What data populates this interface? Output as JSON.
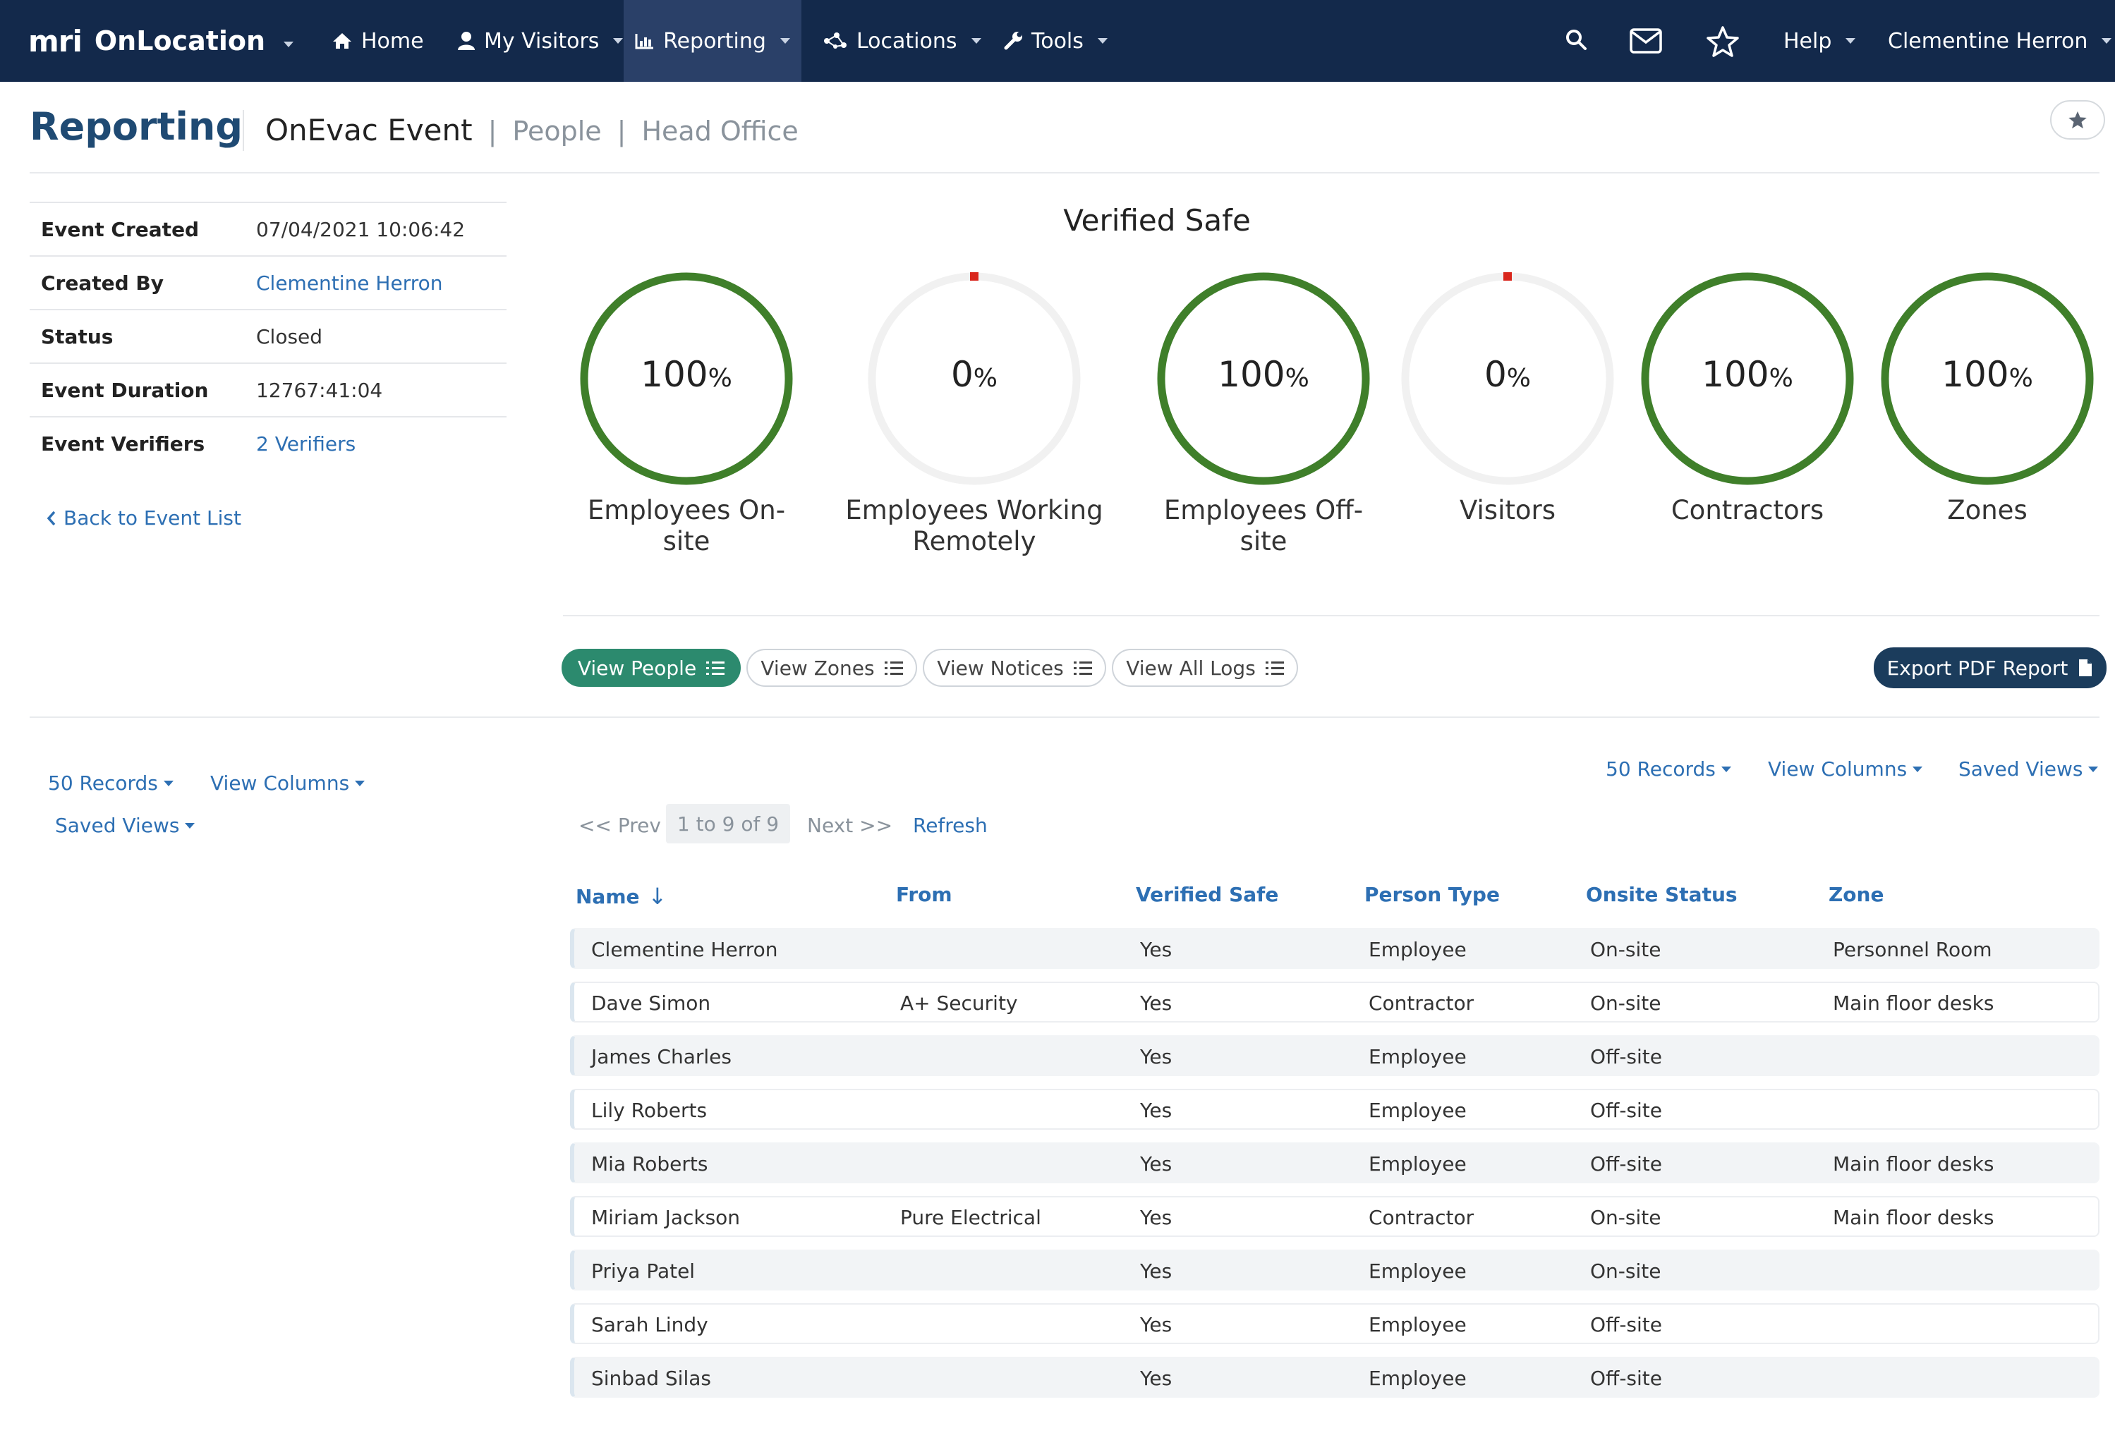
{
  "nav": {
    "logo_mark": "mri",
    "logo_text": "OnLocation",
    "items": [
      {
        "label": "Home"
      },
      {
        "label": "My Visitors"
      },
      {
        "label": "Reporting"
      },
      {
        "label": "Locations"
      },
      {
        "label": "Tools"
      }
    ],
    "help": "Help",
    "user": "Clementine Herron"
  },
  "header": {
    "title": "Reporting",
    "event": "OnEvac Event",
    "sep": "|",
    "crumb_people": "People",
    "crumb_office": "Head Office"
  },
  "info": [
    {
      "label": "Event Created",
      "value": "07/04/2021 10:06:42"
    },
    {
      "label": "Created By",
      "value": "Clementine Herron"
    },
    {
      "label": "Status",
      "value": "Closed"
    },
    {
      "label": "Event Duration",
      "value": "12767:41:04"
    },
    {
      "label": "Event Verifiers",
      "value": "2 Verifiers"
    }
  ],
  "back_link": "Back to Event List",
  "verified_title": "Verified Safe",
  "gauges": [
    {
      "value": "100",
      "unit": "%",
      "fraction": 1.0,
      "label_l1": "Employees On-",
      "label_l2": "site"
    },
    {
      "value": "0",
      "unit": "%",
      "fraction": 0.0,
      "label_l1": "Employees Working",
      "label_l2": "Remotely"
    },
    {
      "value": "100",
      "unit": "%",
      "fraction": 1.0,
      "label_l1": "Employees Off-",
      "label_l2": "site"
    },
    {
      "value": "0",
      "unit": "%",
      "fraction": 0.0,
      "label_l1": "Visitors",
      "label_l2": ""
    },
    {
      "value": "100",
      "unit": "%",
      "fraction": 1.0,
      "label_l1": "Contractors",
      "label_l2": ""
    },
    {
      "value": "100",
      "unit": "%",
      "fraction": 1.0,
      "label_l1": "Zones",
      "label_l2": ""
    }
  ],
  "buttons": {
    "view_people": "View People",
    "view_zones": "View Zones",
    "view_notices": "View Notices",
    "view_logs": "View All Logs",
    "export": "Export PDF Report"
  },
  "left_toolbar": {
    "records": "50 Records",
    "columns": "View Columns",
    "saved": "Saved Views"
  },
  "right_toolbar": {
    "records": "50 Records",
    "columns": "View Columns",
    "saved": "Saved Views"
  },
  "pager": {
    "prev": "<< Prev",
    "range": "1 to 9 of 9",
    "next": "Next >>",
    "refresh": "Refresh"
  },
  "table": {
    "headers": {
      "name": "Name",
      "sort_arrow": "↓",
      "from": "From",
      "verified": "Verified Safe",
      "type": "Person Type",
      "onsite": "Onsite Status",
      "zone": "Zone"
    },
    "rows": [
      {
        "name": "Clementine Herron",
        "from": "",
        "verified": "Yes",
        "type": "Employee",
        "onsite": "On-site",
        "zone": "Personnel Room"
      },
      {
        "name": "Dave Simon",
        "from": "A+ Security",
        "verified": "Yes",
        "type": "Contractor",
        "onsite": "On-site",
        "zone": "Main floor desks"
      },
      {
        "name": "James Charles",
        "from": "",
        "verified": "Yes",
        "type": "Employee",
        "onsite": "Off-site",
        "zone": ""
      },
      {
        "name": "Lily Roberts",
        "from": "",
        "verified": "Yes",
        "type": "Employee",
        "onsite": "Off-site",
        "zone": ""
      },
      {
        "name": "Mia Roberts",
        "from": "",
        "verified": "Yes",
        "type": "Employee",
        "onsite": "Off-site",
        "zone": "Main floor desks"
      },
      {
        "name": "Miriam Jackson",
        "from": "Pure Electrical",
        "verified": "Yes",
        "type": "Contractor",
        "onsite": "On-site",
        "zone": "Main floor desks"
      },
      {
        "name": "Priya Patel",
        "from": "",
        "verified": "Yes",
        "type": "Employee",
        "onsite": "On-site",
        "zone": ""
      },
      {
        "name": "Sarah Lindy",
        "from": "",
        "verified": "Yes",
        "type": "Employee",
        "onsite": "Off-site",
        "zone": ""
      },
      {
        "name": "Sinbad Silas",
        "from": "",
        "verified": "Yes",
        "type": "Employee",
        "onsite": "Off-site",
        "zone": ""
      }
    ]
  },
  "colors": {
    "nav_bg": "#13294b",
    "gauge_green": "#3f7f2a",
    "gauge_track": "#f1f1f1",
    "gauge_zero_marker": "#d9261c",
    "accent_green": "#2c8a6e",
    "link_blue": "#2d6fb3",
    "title_blue": "#1f4a73"
  }
}
